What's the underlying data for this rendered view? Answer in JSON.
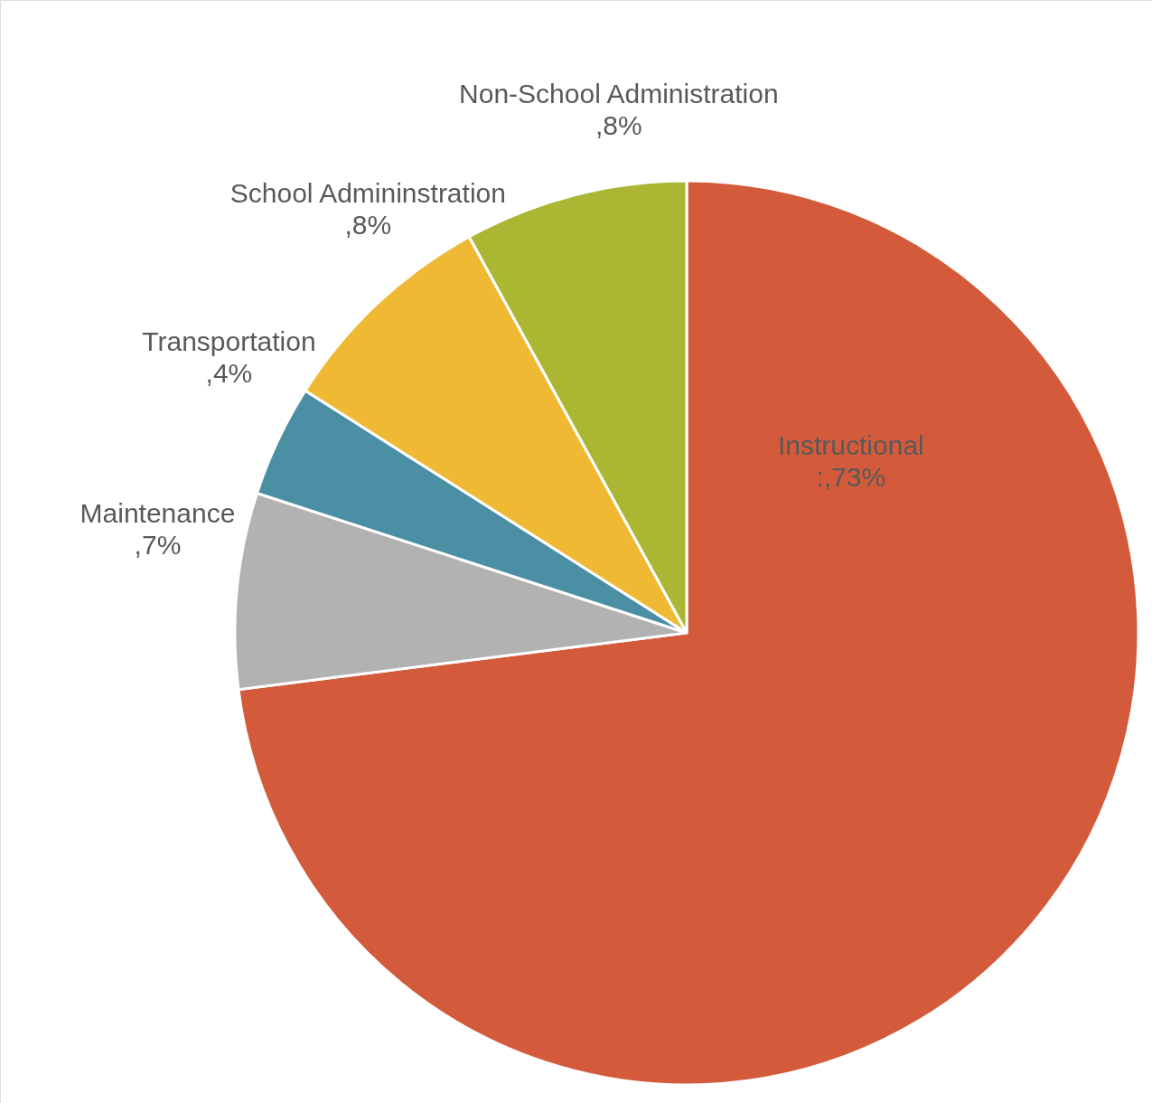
{
  "chart_data": {
    "type": "pie",
    "categories": [
      "Instructional",
      "Maintenance",
      "Transportation",
      "School Admininstration",
      "Non-School Administration"
    ],
    "values": [
      73,
      7,
      4,
      8,
      8
    ],
    "value_labels": [
      ":,73%",
      ",7%",
      ",4%",
      ",8%",
      ",8%"
    ],
    "colors": [
      "#d35b3c",
      "#b2b2b2",
      "#4a8fa3",
      "#efb934",
      "#abb733"
    ]
  }
}
